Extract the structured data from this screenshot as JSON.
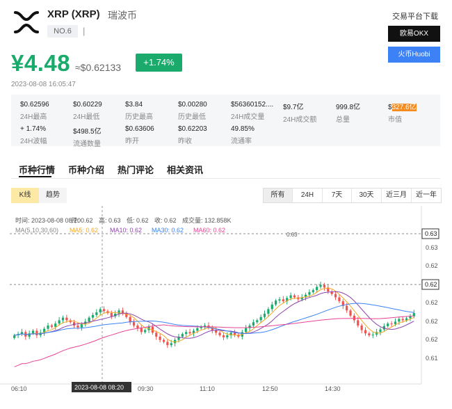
{
  "coin": {
    "name": "XRP (XRP)",
    "cn_name": "瑞波币",
    "rank": "NO.6",
    "rank_sep": "|",
    "price_cny": "¥4.48",
    "price_usd": "≈$0.62133",
    "change": "+1.74%",
    "timestamp": "2023-08-08 16:05:47"
  },
  "exchange": {
    "title": "交易平台下载",
    "okx": "欧易OKX",
    "huobi": "火币Huobi"
  },
  "stats": [
    {
      "value": "$0.62596",
      "label": "24H最高"
    },
    {
      "value": "$0.60229",
      "label": "24H最低"
    },
    {
      "value": "$3.84",
      "label": "历史最高"
    },
    {
      "value": "$0.00280",
      "label": "历史最低"
    },
    {
      "value": "$56360152....",
      "label": "24H成交量"
    },
    {
      "value": "$9.7亿",
      "label": "24H成交额"
    },
    {
      "value": "999.8亿",
      "label": "总量"
    },
    {
      "value_prefix": "$",
      "value": "327.6亿",
      "label": "市值"
    },
    {
      "value": "+ 1.74%",
      "label": "24H波幅"
    },
    {
      "value": "$498.5亿",
      "label": "流通数量"
    },
    {
      "value": "$0.63606",
      "label": "昨开"
    },
    {
      "value": "$0.62203",
      "label": "昨收"
    },
    {
      "value": "49.85%",
      "label": "流通率"
    }
  ],
  "tabs": [
    "币种行情",
    "币种介绍",
    "热门评论",
    "相关资讯"
  ],
  "chart_mode": {
    "kline": "K线",
    "trend": "趋势"
  },
  "periods": [
    "所有",
    "24H",
    "7天",
    "30天",
    "近三月",
    "近一年"
  ],
  "colors": {
    "up": "#1aab6c",
    "down": "#ef5350",
    "accent": "#f58b1f",
    "okx": "#111111",
    "huobi": "#3c82f6"
  },
  "chart_data": {
    "type": "candlestick",
    "info_line": {
      "time_label": "时间: 2023-08-08 08:20",
      "open": "开: 0.62",
      "high": "高: 0.63",
      "low": "低: 0.62",
      "close": "收: 0.62",
      "volume": "成交量: 132.858K"
    },
    "ma_legend": [
      {
        "label": "MA(5,10,30,60)",
        "color": "#888888"
      },
      {
        "label": "MA5: 0.62",
        "color": "#f5a623"
      },
      {
        "label": "MA10: 0.62",
        "color": "#8e44ad"
      },
      {
        "label": "MA30: 0.62",
        "color": "#3c82f6"
      },
      {
        "label": "MA60: 0.62",
        "color": "#e84393"
      }
    ],
    "y_ticks": [
      "0.63",
      "0.63",
      "0.62",
      "0.62",
      "0.62",
      "0.62",
      "0.62",
      "0.61"
    ],
    "current_label": "0.62",
    "top_label": "0.63",
    "peak_label": "0.63",
    "crosshair_time": "2023-08-08 08:20",
    "x_ticks": [
      "06:10",
      "09:30",
      "11:10",
      "12:50",
      "14:30"
    ],
    "ylim": [
      0.6085,
      0.6325
    ],
    "closes": [
      0.6155,
      0.6157,
      0.616,
      0.6153,
      0.6158,
      0.6162,
      0.6155,
      0.6159,
      0.6165,
      0.617,
      0.6168,
      0.6173,
      0.6178,
      0.6182,
      0.6178,
      0.6175,
      0.617,
      0.6167,
      0.6172,
      0.6176,
      0.6182,
      0.6186,
      0.619,
      0.6195,
      0.6192,
      0.6189,
      0.6184,
      0.6188,
      0.6193,
      0.6189,
      0.6183,
      0.6175,
      0.617,
      0.6166,
      0.616,
      0.6163,
      0.6168,
      0.6159,
      0.6153,
      0.6148,
      0.6145,
      0.614,
      0.6143,
      0.6148,
      0.6153,
      0.6157,
      0.616,
      0.6158,
      0.6162,
      0.6166,
      0.6168,
      0.617,
      0.6167,
      0.6163,
      0.6159,
      0.6155,
      0.6152,
      0.6155,
      0.6159,
      0.6156,
      0.6153,
      0.616,
      0.6166,
      0.617,
      0.6175,
      0.6178,
      0.6183,
      0.6188,
      0.6195,
      0.6202,
      0.6208,
      0.621,
      0.6207,
      0.6212,
      0.6216,
      0.6213,
      0.621,
      0.6213,
      0.6217,
      0.6221,
      0.6224,
      0.6229,
      0.6232,
      0.6228,
      0.6222,
      0.6218,
      0.6213,
      0.6207,
      0.62,
      0.6193,
      0.6185,
      0.6178,
      0.617,
      0.6163,
      0.6158,
      0.6155,
      0.6156,
      0.616,
      0.6164,
      0.6169,
      0.6173,
      0.6172,
      0.6176,
      0.618,
      0.6178,
      0.6181,
      0.6184,
      0.6189
    ]
  }
}
